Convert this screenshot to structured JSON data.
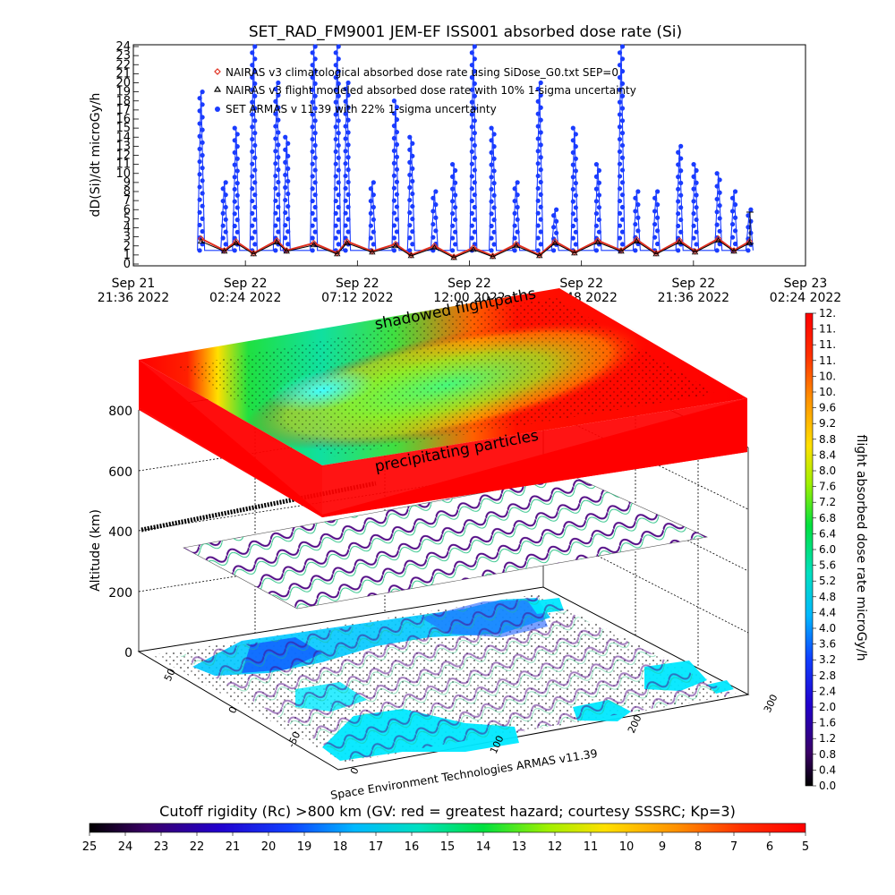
{
  "top_chart": {
    "title": "SET_RAD_FM9001  JEM-EF ISS001 absorbed dose rate (Si)",
    "ylabel": "dD(Si)/dt microGy/h",
    "yticks": [
      "0",
      "1",
      "2",
      "3",
      "4",
      "5",
      "6",
      "7",
      "8",
      "9",
      "10",
      "11",
      "12",
      "13",
      "14",
      "15",
      "16",
      "17",
      "18",
      "19",
      "20",
      "21",
      "22",
      "23",
      "24"
    ],
    "xticks": [
      {
        "line1": "Sep 21",
        "line2": "21:36 2022"
      },
      {
        "line1": "Sep 22",
        "line2": "02:24 2022"
      },
      {
        "line1": "Sep 22",
        "line2": "07:12 2022"
      },
      {
        "line1": "Sep 22",
        "line2": "12:00 2022"
      },
      {
        "line1": "Sep 22",
        "line2": "16:48 2022"
      },
      {
        "line1": "Sep 22",
        "line2": "21:36 2022"
      },
      {
        "line1": "Sep 23",
        "line2": "02:24 2022"
      }
    ],
    "legend": [
      {
        "marker": "diamond",
        "color": "#e03020",
        "label": "NAIRAS v3 climatological absorbed dose rate using SiDose_G0.txt SEP=0"
      },
      {
        "marker": "triangle",
        "color": "#000000",
        "label": "NAIRAS v3 flight modeled absorbed dose rate with 10% 1-sigma uncertainty"
      },
      {
        "marker": "circle",
        "color": "#1a3cff",
        "label": "SET ARMAS v 11.39 with 22% 1-sigma uncertainty"
      }
    ]
  },
  "chart_data": [
    {
      "type": "line",
      "title": "SET_RAD_FM9001  JEM-EF ISS001 absorbed dose rate (Si)",
      "xlabel": "",
      "ylabel": "dD(Si)/dt microGy/h",
      "xlim": [
        "2022-09-21 21:36",
        "2022-09-23 02:24"
      ],
      "ylim": [
        0,
        24
      ],
      "grid": false,
      "legend_position": "top-left",
      "x": [
        "2022-09-22 00:30",
        "2022-09-22 01:30",
        "2022-09-22 02:00",
        "2022-09-22 02:45",
        "2022-09-22 03:45",
        "2022-09-22 04:10",
        "2022-09-22 05:20",
        "2022-09-22 06:20",
        "2022-09-22 06:45",
        "2022-09-22 07:50",
        "2022-09-22 08:50",
        "2022-09-22 09:30",
        "2022-09-22 10:30",
        "2022-09-22 11:20",
        "2022-09-22 12:10",
        "2022-09-22 13:00",
        "2022-09-22 14:00",
        "2022-09-22 15:00",
        "2022-09-22 15:40",
        "2022-09-22 16:30",
        "2022-09-22 17:30",
        "2022-09-22 18:30",
        "2022-09-22 19:10",
        "2022-09-22 20:00",
        "2022-09-22 21:00",
        "2022-09-22 21:40",
        "2022-09-22 22:40",
        "2022-09-22 23:20",
        "2022-09-23 00:00"
      ],
      "series": [
        {
          "name": "SET ARMAS v 11.39 with 22% 1-sigma uncertainty",
          "color": "#1a3cff",
          "values": [
            19,
            9,
            15,
            24,
            20,
            14,
            24,
            24,
            20,
            9,
            18,
            14,
            8,
            11,
            24,
            15,
            9,
            20,
            6,
            15,
            11,
            24,
            8,
            8,
            13,
            11,
            10,
            8,
            6
          ]
        },
        {
          "name": "NAIRAS v3 climatological absorbed dose rate using SiDose_G0.txt SEP=0",
          "color": "#e03020",
          "values": [
            2.8,
            1.5,
            2.5,
            1.2,
            2.6,
            1.5,
            2.3,
            1.2,
            2.5,
            1.4,
            2.2,
            1.0,
            2.0,
            0.8,
            1.8,
            0.9,
            2.2,
            1.0,
            2.5,
            1.3,
            2.6,
            1.5,
            2.7,
            1.2,
            2.6,
            1.4,
            2.8,
            1.5,
            2.5
          ]
        },
        {
          "name": "NAIRAS v3 flight modeled absorbed dose rate with 10% 1-sigma uncertainty",
          "color": "#000000",
          "values": [
            2.5,
            1.4,
            2.3,
            1.1,
            2.4,
            1.4,
            2.1,
            1.1,
            2.3,
            1.3,
            2.0,
            0.9,
            1.8,
            0.7,
            1.6,
            0.8,
            2.0,
            0.9,
            2.3,
            1.2,
            2.4,
            1.4,
            2.5,
            1.1,
            2.4,
            1.3,
            2.6,
            1.4,
            2.3
          ]
        }
      ]
    },
    {
      "type": "other",
      "title": "",
      "zlabel": "Altitude (km)",
      "zticks": [
        0,
        200,
        400,
        600,
        800
      ],
      "lat_ticks": [
        50,
        0,
        -50
      ],
      "lon_ticks": [
        0,
        100,
        200,
        300
      ],
      "annotations": [
        "shadowed flightpaths",
        "precipitating particles",
        "Space Environment Technologies ARMAS v11.39"
      ]
    }
  ],
  "scene": {
    "zlabel": "Altitude (km)",
    "zticks": [
      "0",
      "200",
      "400",
      "600",
      "800"
    ],
    "lat_ticks": [
      "50",
      "0",
      "-50"
    ],
    "lon_ticks": [
      "0",
      "100",
      "200",
      "300"
    ],
    "annot_shadowed": "shadowed flightpaths",
    "annot_precip": "precipitating particles",
    "credit": "Space Environment Technologies ARMAS v11.39"
  },
  "right_colorbar": {
    "label": "flight absorbed dose rate microGy/h",
    "ticks": [
      "0.0",
      "0.4",
      "0.8",
      "1.2",
      "1.6",
      "2.0",
      "2.4",
      "2.8",
      "3.2",
      "3.6",
      "4.0",
      "4.4",
      "4.8",
      "5.2",
      "5.6",
      "6.0",
      "6.4",
      "6.8",
      "7.2",
      "7.6",
      "8.0",
      "8.4",
      "8.8",
      "9.2",
      "9.6",
      "10.",
      "10.",
      "11.",
      "11.",
      "11.",
      "12."
    ]
  },
  "bottom_colorbar": {
    "label": "Cutoff rigidity (Rc) >800 km (GV: red = greatest hazard; courtesy SSSRC; Kp=3)",
    "ticks": [
      "25",
      "24",
      "23",
      "22",
      "21",
      "20",
      "19",
      "18",
      "17",
      "16",
      "15",
      "14",
      "13",
      "12",
      "11",
      "10",
      "9",
      "8",
      "7",
      "6",
      "5"
    ]
  },
  "colors": {
    "blue_series": "#1a3cff",
    "red_series": "#e03020",
    "black_series": "#000000"
  }
}
